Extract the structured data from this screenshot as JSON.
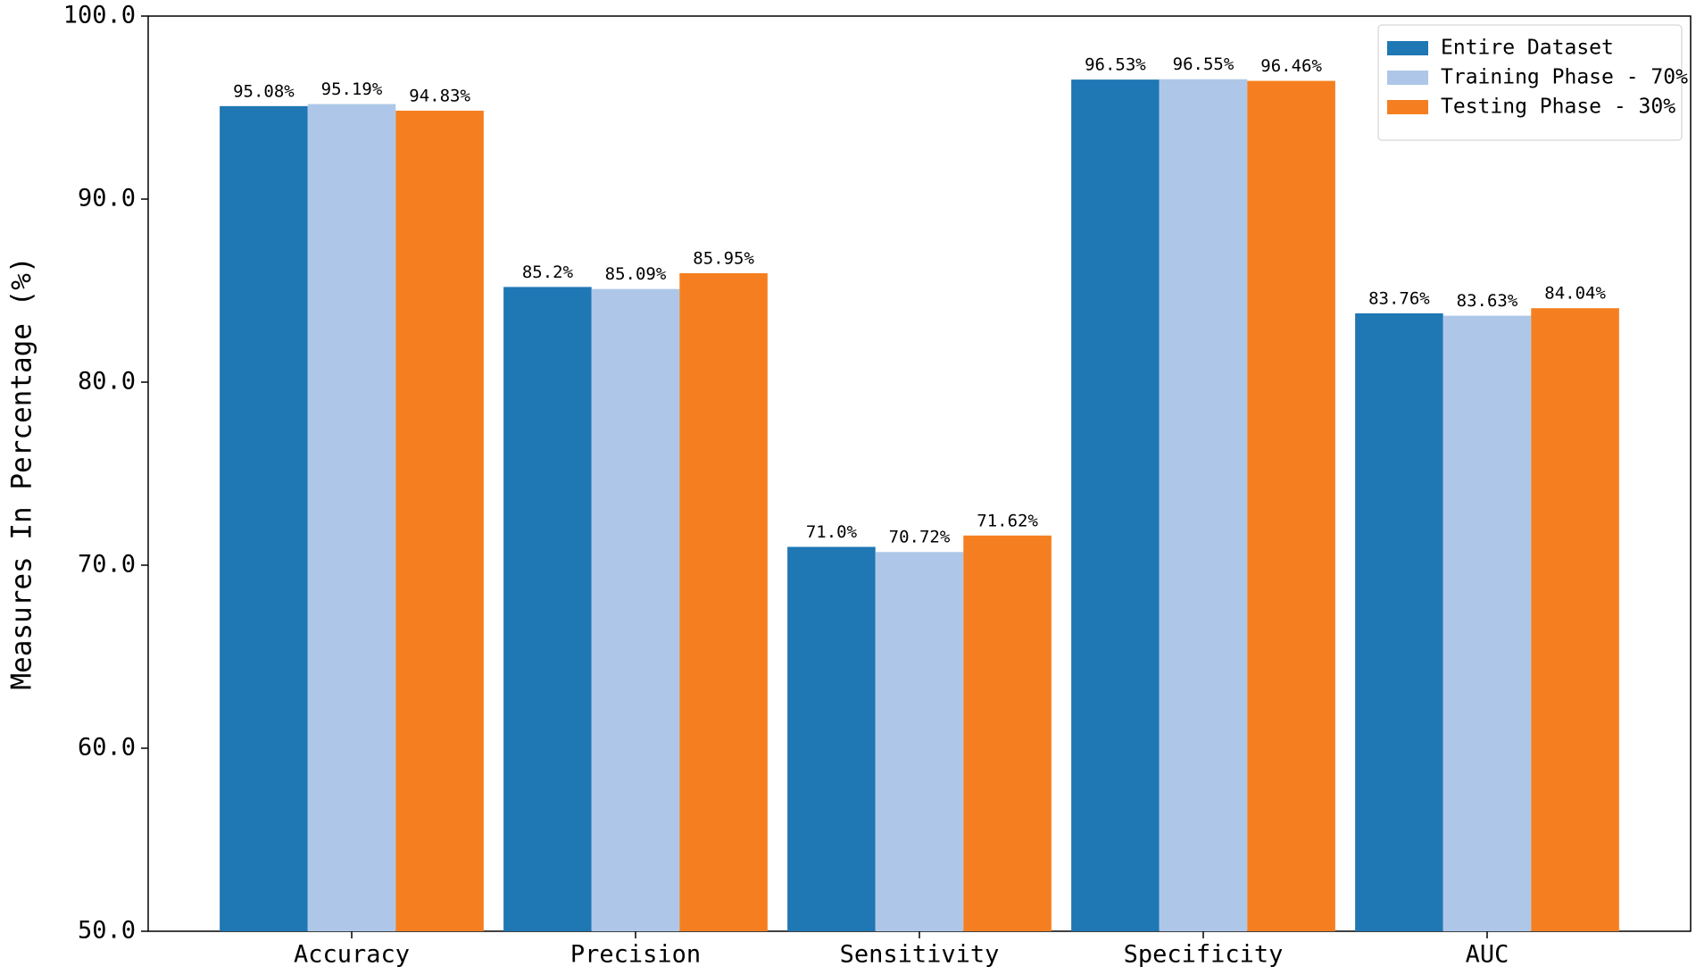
{
  "chart_data": {
    "type": "bar",
    "y_label": "Measures In Percentage (%)",
    "categories": [
      "Accuracy",
      "Precision",
      "Sensitivity",
      "Specificity",
      "AUC"
    ],
    "series": [
      {
        "name": "Entire Dataset",
        "color": "#1f77b4",
        "values": [
          95.08,
          85.2,
          71.0,
          96.53,
          83.76
        ],
        "value_labels": [
          "95.08%",
          "85.2%",
          "71.0%",
          "96.53%",
          "83.76%"
        ]
      },
      {
        "name": "Training Phase - 70%",
        "color": "#aec7e8",
        "values": [
          95.19,
          85.09,
          70.72,
          96.55,
          83.63
        ],
        "value_labels": [
          "95.19%",
          "85.09%",
          "70.72%",
          "96.55%",
          "83.63%"
        ]
      },
      {
        "name": "Testing Phase - 30%",
        "color": "#f57f20",
        "values": [
          94.83,
          85.95,
          71.62,
          96.46,
          84.04
        ],
        "value_labels": [
          "94.83%",
          "85.95%",
          "71.62%",
          "96.46%",
          "84.04%"
        ]
      }
    ],
    "ylim": [
      50,
      100
    ],
    "yticks": [
      {
        "value": 50,
        "label": "50.0"
      },
      {
        "value": 60,
        "label": "60.0"
      },
      {
        "value": 70,
        "label": "70.0"
      },
      {
        "value": 80,
        "label": "80.0"
      },
      {
        "value": 90,
        "label": "90.0"
      },
      {
        "value": 100,
        "label": "100.0"
      }
    ],
    "legend": "upper right"
  }
}
